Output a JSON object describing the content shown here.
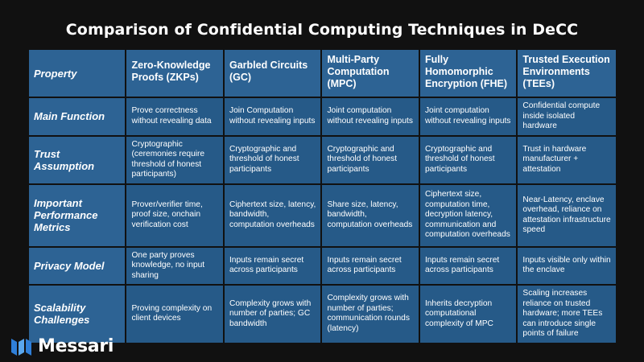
{
  "title": "Comparison of Confidential Computing Techniques in DeCC",
  "headers": [
    "Property",
    "Zero-Knowledge Proofs (ZKPs)",
    "Garbled Circuits (GC)",
    "Multi-Party Computation (MPC)",
    "Fully Homomorphic Encryption (FHE)",
    "Trusted Execution Environments (TEEs)"
  ],
  "rows": [
    {
      "property": "Main Function",
      "cells": [
        "Prove correctness without revealing data",
        "Join Computation without revealing inputs",
        "Joint computation without revealing inputs",
        "Joint computation without revealing inputs",
        "Confidential compute inside isolated hardware"
      ]
    },
    {
      "property": "Trust Assumption",
      "cells": [
        "Cryptographic (ceremonies require threshold of honest participants)",
        "Cryptographic and threshold of honest participants",
        "Cryptographic and threshold of honest participants",
        "Cryptographic and threshold of honest participants",
        "Trust in hardware manufacturer + attestation"
      ]
    },
    {
      "property": "Important Performance Metrics",
      "cells": [
        "Prover/verifier time, proof size, onchain verification cost",
        "Ciphertext size, latency, bandwidth, computation overheads",
        "Share size, latency, bandwidth, computation overheads",
        "Ciphertext size, computation time, decryption latency, communication and computation overheads",
        "Near-Latency, enclave overhead, reliance on attestation infrastructure speed"
      ]
    },
    {
      "property": "Privacy Model",
      "cells": [
        "One party proves knowledge, no input sharing",
        "Inputs remain secret across participants",
        "Inputs remain secret across participants",
        "Inputs remain secret across participants",
        "Inputs visible only within the enclave"
      ]
    },
    {
      "property": "Scalability Challenges",
      "cells": [
        "Proving complexity on client devices",
        "Complexity grows with number of parties; GC bandwidth",
        "Complexity grows with number of parties; communication rounds (latency)",
        "Inherits decryption computational complexity of MPC",
        "Scaling increases reliance on trusted hardware; more TEEs can introduce single points of failure"
      ]
    }
  ],
  "brand": {
    "name": "Messari",
    "icon": "messari-logo-icon",
    "accent": "#3d8fe0"
  },
  "colors": {
    "background": "#111111",
    "cell": "#265a88",
    "header": "#2d6394"
  }
}
